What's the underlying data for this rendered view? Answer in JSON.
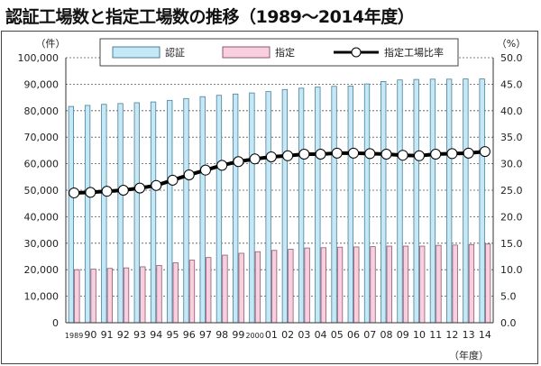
{
  "title": "認証工場数と指定工場数の推移（1989～2014年度）",
  "chart_data": {
    "type": "bar",
    "title": "認証工場数と指定工場数の推移（1989～2014年度）",
    "xlabel": "（年度）",
    "ylabel": "（件）",
    "y2label": "（%）",
    "ylim": [
      0,
      100000
    ],
    "y2lim": [
      0,
      50
    ],
    "yticks": [
      "0",
      "10,000",
      "20,000",
      "30,000",
      "40,000",
      "50,000",
      "60,000",
      "70,000",
      "80,000",
      "90,000",
      "100,000"
    ],
    "y2ticks": [
      "0.0",
      "5.0",
      "10.0",
      "15.0",
      "20.0",
      "25.0",
      "30.0",
      "35.0",
      "40.0",
      "45.0",
      "50.0"
    ],
    "grid": true,
    "legend_position": "top",
    "categories": [
      "1989",
      "90",
      "91",
      "92",
      "93",
      "94",
      "95",
      "96",
      "97",
      "98",
      "99",
      "2000",
      "01",
      "02",
      "03",
      "04",
      "05",
      "06",
      "07",
      "08",
      "09",
      "10",
      "11",
      "12",
      "13",
      "14"
    ],
    "series": [
      {
        "name": "認証",
        "type": "bar",
        "axis": "left",
        "color": "#c5e8f7",
        "values": [
          81600,
          82000,
          82400,
          82700,
          83000,
          83300,
          83900,
          84600,
          85300,
          85800,
          86300,
          86700,
          87200,
          88000,
          88500,
          88900,
          89200,
          89300,
          90100,
          91000,
          91600,
          91800,
          91900,
          91900,
          92000,
          92000
        ]
      },
      {
        "name": "指定",
        "type": "bar",
        "axis": "left",
        "color": "#f9cfe0",
        "values": [
          20000,
          20200,
          20500,
          20700,
          21100,
          21600,
          22600,
          23600,
          24600,
          25500,
          26200,
          26800,
          27300,
          27700,
          28200,
          28300,
          28500,
          28600,
          28700,
          28900,
          28900,
          28900,
          29200,
          29300,
          29500,
          29700
        ]
      },
      {
        "name": "指定工場比率",
        "type": "line",
        "axis": "right",
        "color": "#000000",
        "values": [
          24.5,
          24.6,
          24.8,
          25.0,
          25.4,
          25.9,
          26.9,
          27.9,
          28.8,
          29.7,
          30.4,
          30.9,
          31.3,
          31.5,
          31.8,
          31.8,
          32.0,
          32.0,
          31.9,
          31.8,
          31.6,
          31.5,
          31.8,
          31.9,
          32.0,
          32.3
        ]
      }
    ]
  }
}
